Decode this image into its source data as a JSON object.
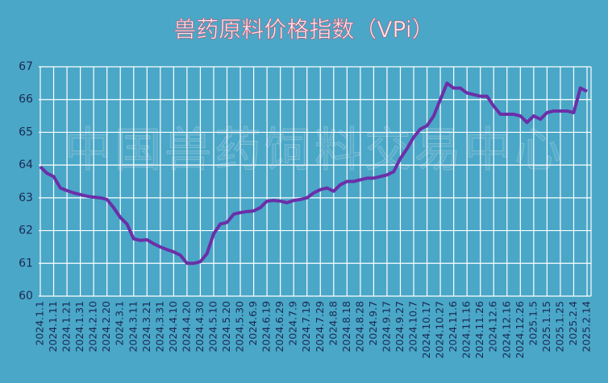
{
  "chart_data": {
    "type": "line",
    "title": "兽药原料价格指数（VPi）",
    "watermark": "中国兽药饲料交易中心",
    "categories": [
      "2024.1.1",
      null,
      "2024.1.11",
      null,
      "2024.1.21",
      null,
      "2024.1.31",
      null,
      "2024.2.10",
      null,
      "2024.2.20",
      null,
      "2024.3.1",
      null,
      "2024.3.11",
      null,
      "2024.3.21",
      null,
      "2024.3.31",
      null,
      "2024.4.10",
      null,
      "2024.4.20",
      null,
      "2024.4.30",
      null,
      "2024.5.10",
      null,
      "2024.5.20",
      null,
      "2024.5.30",
      null,
      "2024.6.9",
      null,
      "2024.6.19",
      null,
      "2024.6.29",
      null,
      "2024.7.9",
      null,
      "2024.7.19",
      null,
      "2024.7.29",
      null,
      "2024.8.8",
      null,
      "2024.8.18",
      null,
      "2024.8.28",
      null,
      "2024.9.7",
      null,
      "2024.9.17",
      null,
      "2024.9.27",
      null,
      "2024.10.7",
      null,
      "2024.10.17",
      null,
      "2024.10.27",
      null,
      "2024.11.6",
      null,
      "2024.11.16",
      null,
      "2024.11.26",
      null,
      "2024.12.6",
      null,
      "2024.12.16",
      null,
      "2024.12.26",
      null,
      "2025.1.5",
      null,
      "2025.1.15",
      null,
      "2025.1.25",
      null,
      "2025.2.4",
      null,
      "2025.2.14"
    ],
    "series": [
      {
        "name": "VPi",
        "color": "#6b2fa8",
        "values": [
          63.95,
          63.75,
          63.65,
          63.3,
          63.22,
          63.15,
          63.1,
          63.05,
          63.02,
          63.0,
          62.95,
          62.7,
          62.4,
          62.2,
          61.75,
          61.7,
          61.72,
          61.6,
          61.5,
          61.42,
          61.35,
          61.25,
          61.0,
          61.0,
          61.05,
          61.3,
          61.9,
          62.2,
          62.25,
          62.5,
          62.55,
          62.58,
          62.6,
          62.7,
          62.9,
          62.92,
          62.9,
          62.85,
          62.92,
          62.95,
          63.0,
          63.15,
          63.25,
          63.3,
          63.2,
          63.4,
          63.5,
          63.5,
          63.55,
          63.6,
          63.6,
          63.65,
          63.7,
          63.8,
          64.2,
          64.5,
          64.85,
          65.1,
          65.2,
          65.5,
          66.0,
          66.5,
          66.35,
          66.35,
          66.2,
          66.15,
          66.1,
          66.1,
          65.8,
          65.55,
          65.55,
          65.55,
          65.5,
          65.3,
          65.5,
          65.4,
          65.6,
          65.65,
          65.65,
          65.65,
          65.6,
          66.35,
          66.25
        ]
      }
    ],
    "ylim": [
      60,
      67
    ],
    "yticks": [
      60,
      61,
      62,
      63,
      64,
      65,
      66,
      67
    ],
    "grid": true
  }
}
